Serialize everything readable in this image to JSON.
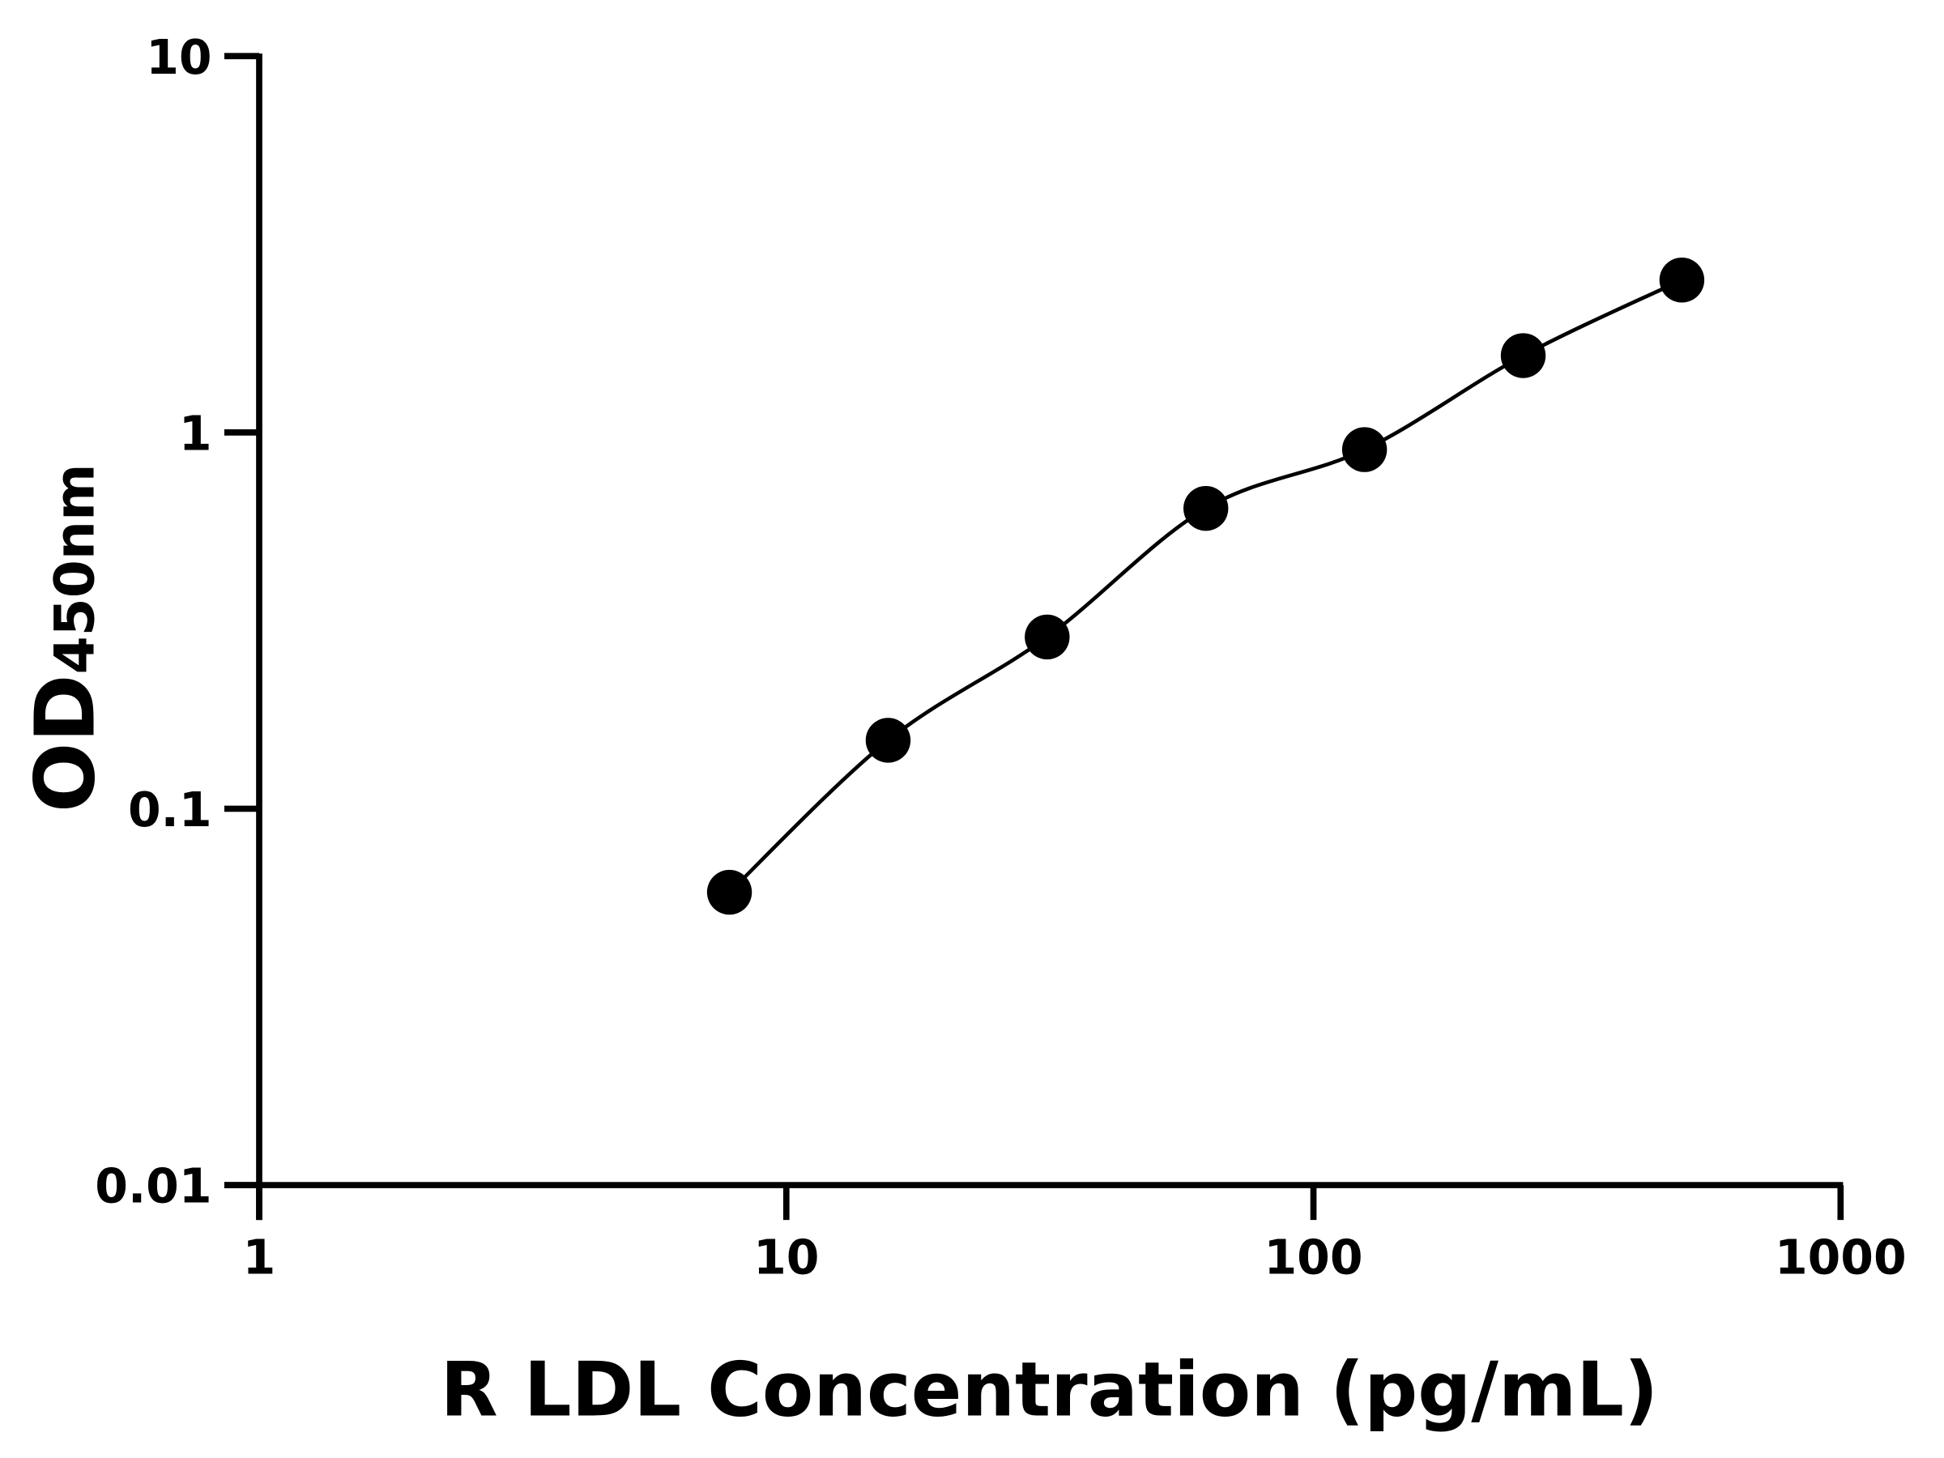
{
  "chart_data": {
    "type": "scatter",
    "title": "",
    "xlabel": "R LDL Concentration (pg/mL)",
    "ylabel_main": "OD",
    "ylabel_sub": "450nm",
    "x_scale": "log",
    "y_scale": "log",
    "xlim": [
      1,
      1000
    ],
    "ylim": [
      0.01,
      10
    ],
    "x_ticks": [
      "1",
      "10",
      "100",
      "1000"
    ],
    "y_ticks": [
      "0.01",
      "0.1",
      "1",
      "10"
    ],
    "grid": false,
    "legend": "none",
    "marker_color": "#000000",
    "line_color": "#000000",
    "fit_curve": true,
    "points": [
      {
        "x": 7.8,
        "y": 0.06
      },
      {
        "x": 15.6,
        "y": 0.152
      },
      {
        "x": 31.25,
        "y": 0.286
      },
      {
        "x": 62.5,
        "y": 0.628
      },
      {
        "x": 125,
        "y": 0.9
      },
      {
        "x": 250,
        "y": 1.6
      },
      {
        "x": 500,
        "y": 2.54
      }
    ]
  }
}
